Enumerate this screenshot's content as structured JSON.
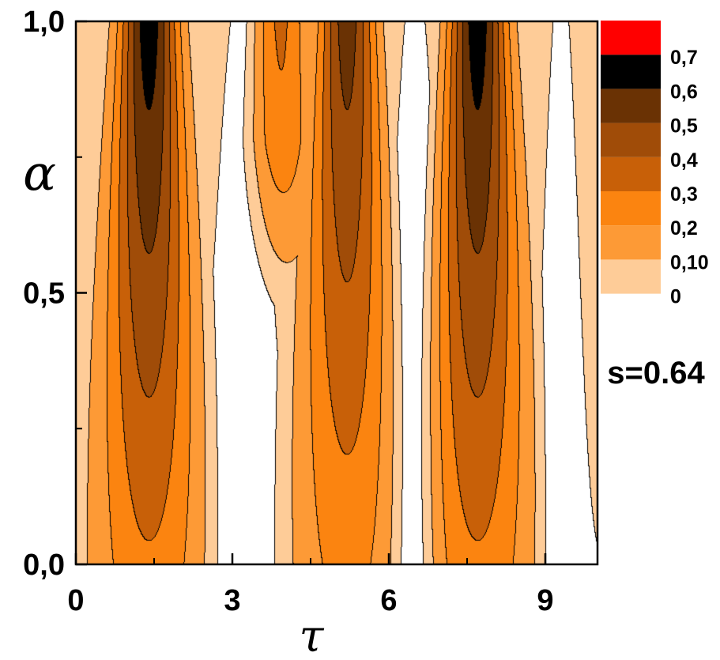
{
  "chart_data": {
    "type": "heatmap",
    "title": "",
    "xlabel": "τ",
    "ylabel": "α",
    "x_ticks": [
      "0",
      "3",
      "6",
      "9"
    ],
    "x_tick_values": [
      0,
      3,
      6,
      9
    ],
    "y_ticks": [
      "0,0",
      "0,5",
      "1,0"
    ],
    "y_tick_values": [
      0,
      0.5,
      1.0
    ],
    "xlim": [
      0,
      10
    ],
    "ylim": [
      0,
      1.0
    ],
    "annotation": "s=0.64",
    "grid": false,
    "legend_position": "right",
    "legend": {
      "levels": [
        "0",
        "0,10",
        "0,2",
        "0,3",
        "0,4",
        "0,5",
        "0,6",
        "0,7"
      ],
      "level_values": [
        0,
        0.1,
        0.2,
        0.3,
        0.4,
        0.5,
        0.6,
        0.7
      ],
      "colors": [
        "#FECC98",
        "#FD9A36",
        "#FB8410",
        "#C86008",
        "#A04C08",
        "#6A3204",
        "#000000",
        "#FF0000"
      ],
      "zero_region_color": "#FFFFFF"
    },
    "peaks": [
      {
        "tau": 1.4,
        "alpha_min": 0.0,
        "max_level": 0.6
      },
      {
        "tau": 3.9,
        "alpha_min": 0.78,
        "max_level": 0.3
      },
      {
        "tau": 5.2,
        "alpha_min": 0.0,
        "max_level": 0.5
      },
      {
        "tau": 7.7,
        "alpha_min": 0.0,
        "max_level": 0.6
      }
    ]
  }
}
